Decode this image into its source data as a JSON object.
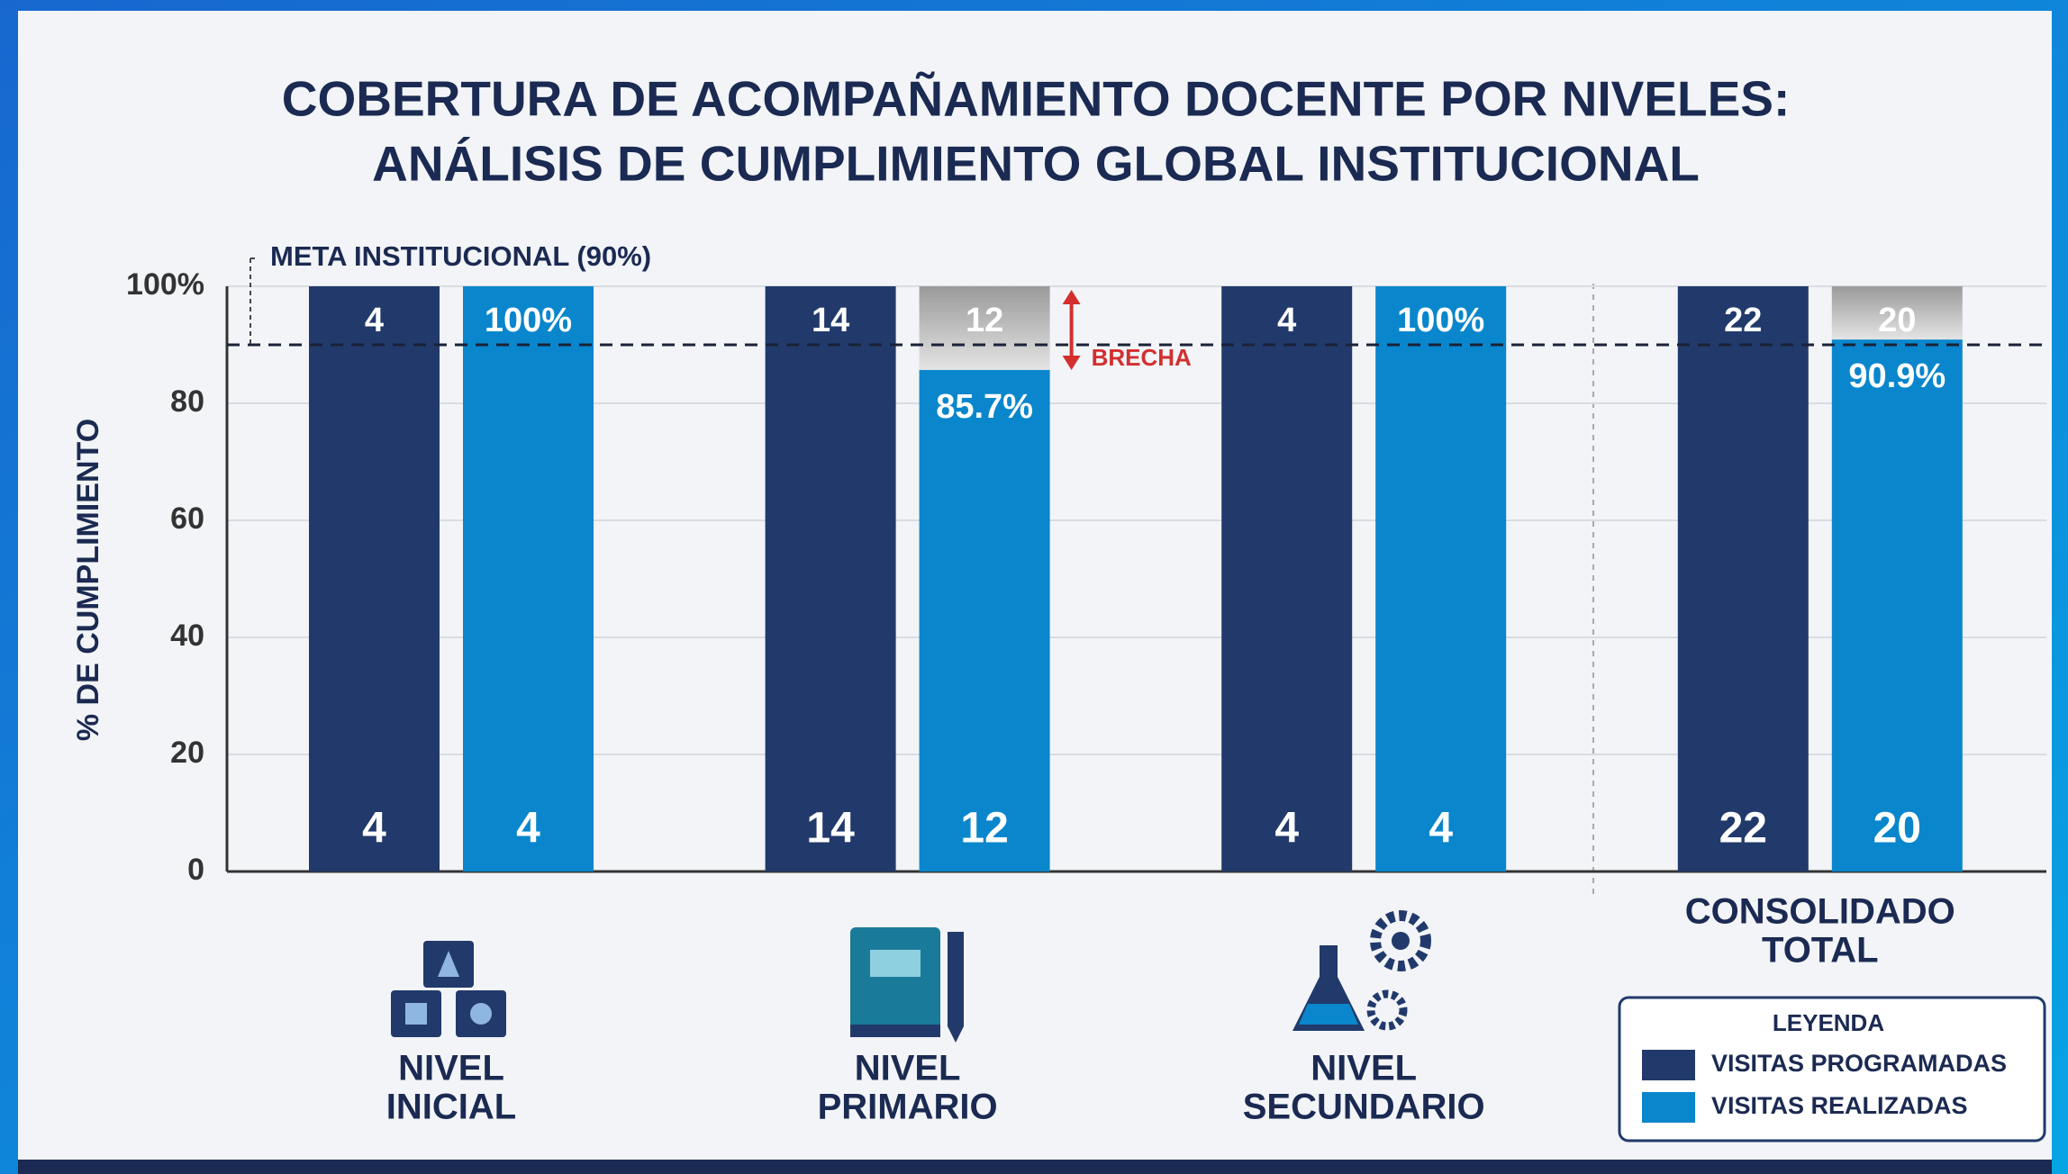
{
  "chart_data": {
    "type": "bar",
    "title": [
      "COBERTURA DE ACOMPAÑAMIENTO DOCENTE POR NIVELES:",
      "ANÁLISIS DE CUMPLIMIENTO GLOBAL INSTITUCIONAL"
    ],
    "ylabel": "% DE CUMPLIMIENTO",
    "categories": [
      [
        "NIVEL",
        "INICIAL"
      ],
      [
        "NIVEL",
        "PRIMARIO"
      ],
      [
        "NIVEL",
        "SECUNDARIO"
      ],
      [
        "CONSOLIDADO",
        "TOTAL"
      ]
    ],
    "series": [
      {
        "name": "VISITAS PROGRAMADAS",
        "color": "#213a6b",
        "values": [
          100,
          100,
          100,
          100
        ],
        "counts": [
          4,
          14,
          4,
          22
        ]
      },
      {
        "name": "VISITAS REALIZADAS",
        "color": "#0a86cc",
        "values": [
          100,
          85.7,
          100,
          90.9
        ],
        "value_labels": [
          "100%",
          "85.7%",
          "100%",
          "90.9%"
        ],
        "counts": [
          4,
          12,
          4,
          20
        ]
      }
    ],
    "ylim": [
      0,
      100
    ],
    "yticks": [
      0,
      20,
      40,
      60,
      80,
      {
        "value": 100,
        "label": "100%"
      }
    ],
    "grid": true,
    "target": {
      "value": 90,
      "label": "META INSTITUCIONAL (90%)"
    },
    "gap_label": "BRECHA",
    "legend_title": "LEYENDA",
    "legend": "lower right"
  }
}
